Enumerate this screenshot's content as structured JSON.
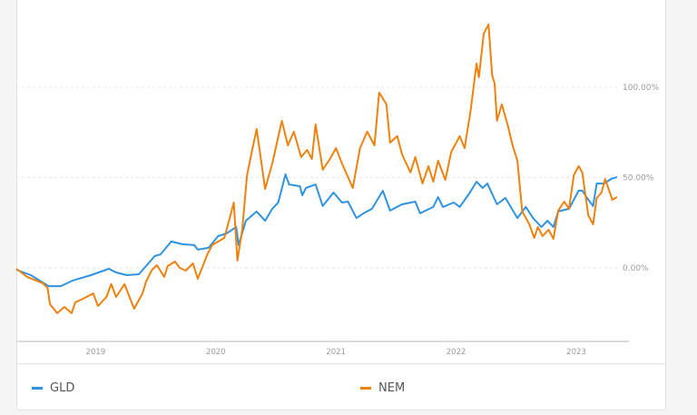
{
  "chart_data": {
    "type": "line",
    "title": "",
    "xlabel": "",
    "ylabel": "",
    "xlim": [
      2018.34,
      2023.34
    ],
    "ylim": [
      -37,
      140
    ],
    "x_ticks": [
      {
        "value": 2019,
        "label": "2019"
      },
      {
        "value": 2020,
        "label": "2020"
      },
      {
        "value": 2021,
        "label": "2021"
      },
      {
        "value": 2022,
        "label": "2022"
      },
      {
        "value": 2023,
        "label": "2023"
      }
    ],
    "y_ticks": [
      {
        "value": 0,
        "label": "0.00%"
      },
      {
        "value": 50,
        "label": "50.00%"
      },
      {
        "value": 100,
        "label": "100.00%"
      }
    ],
    "grid": "horizontal dashed",
    "legend_position": "bottom",
    "series": [
      {
        "name": "GLD",
        "color": "#2f93e0",
        "points": [
          [
            2018.34,
            -1.0
          ],
          [
            2018.46,
            -4.0
          ],
          [
            2018.61,
            -10.1
          ],
          [
            2018.71,
            -10.1
          ],
          [
            2018.81,
            -7.0
          ],
          [
            2018.96,
            -4.0
          ],
          [
            2019.11,
            -0.5
          ],
          [
            2019.17,
            -2.5
          ],
          [
            2019.26,
            -4.0
          ],
          [
            2019.36,
            -3.5
          ],
          [
            2019.44,
            2.5
          ],
          [
            2019.49,
            6.5
          ],
          [
            2019.54,
            7.5
          ],
          [
            2019.63,
            14.6
          ],
          [
            2019.72,
            13.1
          ],
          [
            2019.82,
            12.6
          ],
          [
            2019.85,
            10.1
          ],
          [
            2019.94,
            11.1
          ],
          [
            2020.02,
            17.6
          ],
          [
            2020.09,
            19.1
          ],
          [
            2020.17,
            22.6
          ],
          [
            2020.19,
            12.6
          ],
          [
            2020.25,
            26.1
          ],
          [
            2020.34,
            31.2
          ],
          [
            2020.41,
            26.1
          ],
          [
            2020.47,
            32.7
          ],
          [
            2020.52,
            36.2
          ],
          [
            2020.58,
            51.8
          ],
          [
            2020.61,
            46.2
          ],
          [
            2020.7,
            45.2
          ],
          [
            2020.72,
            40.2
          ],
          [
            2020.75,
            44.2
          ],
          [
            2020.83,
            46.2
          ],
          [
            2020.89,
            34.2
          ],
          [
            2020.98,
            41.7
          ],
          [
            2021.05,
            36.2
          ],
          [
            2021.1,
            36.7
          ],
          [
            2021.17,
            27.6
          ],
          [
            2021.23,
            30.2
          ],
          [
            2021.3,
            32.7
          ],
          [
            2021.39,
            42.7
          ],
          [
            2021.45,
            31.7
          ],
          [
            2021.55,
            35.2
          ],
          [
            2021.66,
            36.7
          ],
          [
            2021.7,
            30.2
          ],
          [
            2021.81,
            33.7
          ],
          [
            2021.85,
            39.2
          ],
          [
            2021.89,
            33.7
          ],
          [
            2021.98,
            36.2
          ],
          [
            2022.03,
            33.7
          ],
          [
            2022.11,
            41.2
          ],
          [
            2022.17,
            47.7
          ],
          [
            2022.22,
            44.2
          ],
          [
            2022.26,
            46.7
          ],
          [
            2022.34,
            35.2
          ],
          [
            2022.41,
            38.7
          ],
          [
            2022.51,
            27.6
          ],
          [
            2022.58,
            33.7
          ],
          [
            2022.64,
            27.6
          ],
          [
            2022.71,
            22.6
          ],
          [
            2022.76,
            26.1
          ],
          [
            2022.81,
            22.6
          ],
          [
            2022.85,
            31.2
          ],
          [
            2022.94,
            32.7
          ],
          [
            2023.02,
            42.7
          ],
          [
            2023.05,
            42.7
          ],
          [
            2023.09,
            38.7
          ],
          [
            2023.14,
            34.2
          ],
          [
            2023.17,
            46.7
          ],
          [
            2023.23,
            46.7
          ],
          [
            2023.29,
            49.2
          ],
          [
            2023.34,
            50.3
          ]
        ]
      },
      {
        "name": "NEM",
        "color": "#ee820f",
        "points": [
          [
            2018.34,
            -0.5
          ],
          [
            2018.43,
            -5.0
          ],
          [
            2018.56,
            -8.5
          ],
          [
            2018.6,
            -11.1
          ],
          [
            2018.62,
            -20.1
          ],
          [
            2018.68,
            -25.1
          ],
          [
            2018.74,
            -21.6
          ],
          [
            2018.8,
            -25.1
          ],
          [
            2018.83,
            -19.1
          ],
          [
            2018.91,
            -16.6
          ],
          [
            2018.98,
            -14.1
          ],
          [
            2019.02,
            -21.1
          ],
          [
            2019.09,
            -16.1
          ],
          [
            2019.13,
            -9.0
          ],
          [
            2019.17,
            -16.1
          ],
          [
            2019.24,
            -9.0
          ],
          [
            2019.32,
            -22.6
          ],
          [
            2019.39,
            -14.1
          ],
          [
            2019.42,
            -7.5
          ],
          [
            2019.47,
            -1.0
          ],
          [
            2019.51,
            1.5
          ],
          [
            2019.57,
            -5.0
          ],
          [
            2019.6,
            1.0
          ],
          [
            2019.66,
            3.5
          ],
          [
            2019.7,
            0.0
          ],
          [
            2019.75,
            -1.5
          ],
          [
            2019.81,
            2.5
          ],
          [
            2019.85,
            -6.0
          ],
          [
            2019.93,
            7.5
          ],
          [
            2019.97,
            12.6
          ],
          [
            2020.07,
            16.6
          ],
          [
            2020.12,
            28.6
          ],
          [
            2020.15,
            36.2
          ],
          [
            2020.18,
            4.0
          ],
          [
            2020.22,
            21.1
          ],
          [
            2020.26,
            51.3
          ],
          [
            2020.3,
            64.3
          ],
          [
            2020.34,
            76.9
          ],
          [
            2020.41,
            43.7
          ],
          [
            2020.47,
            57.8
          ],
          [
            2020.55,
            81.4
          ],
          [
            2020.6,
            67.8
          ],
          [
            2020.65,
            75.4
          ],
          [
            2020.71,
            61.3
          ],
          [
            2020.76,
            65.3
          ],
          [
            2020.8,
            60.3
          ],
          [
            2020.83,
            79.4
          ],
          [
            2020.89,
            54.3
          ],
          [
            2020.95,
            60.3
          ],
          [
            2021.0,
            66.3
          ],
          [
            2021.05,
            57.8
          ],
          [
            2021.14,
            44.2
          ],
          [
            2021.2,
            66.3
          ],
          [
            2021.26,
            75.4
          ],
          [
            2021.32,
            67.8
          ],
          [
            2021.36,
            97.0
          ],
          [
            2021.42,
            90.5
          ],
          [
            2021.45,
            69.3
          ],
          [
            2021.51,
            72.9
          ],
          [
            2021.55,
            62.8
          ],
          [
            2021.62,
            52.8
          ],
          [
            2021.66,
            61.3
          ],
          [
            2021.72,
            46.7
          ],
          [
            2021.77,
            56.3
          ],
          [
            2021.81,
            47.7
          ],
          [
            2021.85,
            59.3
          ],
          [
            2021.91,
            48.7
          ],
          [
            2021.96,
            64.3
          ],
          [
            2022.03,
            72.9
          ],
          [
            2022.07,
            66.3
          ],
          [
            2022.12,
            86.9
          ],
          [
            2022.17,
            113.1
          ],
          [
            2022.19,
            105.5
          ],
          [
            2022.23,
            129.6
          ],
          [
            2022.27,
            134.7
          ],
          [
            2022.3,
            106.5
          ],
          [
            2022.32,
            102.0
          ],
          [
            2022.34,
            81.4
          ],
          [
            2022.38,
            90.5
          ],
          [
            2022.43,
            78.9
          ],
          [
            2022.47,
            67.8
          ],
          [
            2022.51,
            59.3
          ],
          [
            2022.55,
            31.2
          ],
          [
            2022.61,
            24.1
          ],
          [
            2022.65,
            16.6
          ],
          [
            2022.68,
            22.6
          ],
          [
            2022.72,
            17.6
          ],
          [
            2022.77,
            21.1
          ],
          [
            2022.81,
            16.1
          ],
          [
            2022.85,
            31.7
          ],
          [
            2022.9,
            36.7
          ],
          [
            2022.94,
            32.7
          ],
          [
            2022.98,
            51.3
          ],
          [
            2023.02,
            56.3
          ],
          [
            2023.05,
            52.8
          ],
          [
            2023.1,
            29.1
          ],
          [
            2023.14,
            24.1
          ],
          [
            2023.17,
            38.7
          ],
          [
            2023.21,
            41.7
          ],
          [
            2023.24,
            49.2
          ],
          [
            2023.3,
            37.7
          ],
          [
            2023.34,
            39.2
          ]
        ]
      }
    ]
  }
}
